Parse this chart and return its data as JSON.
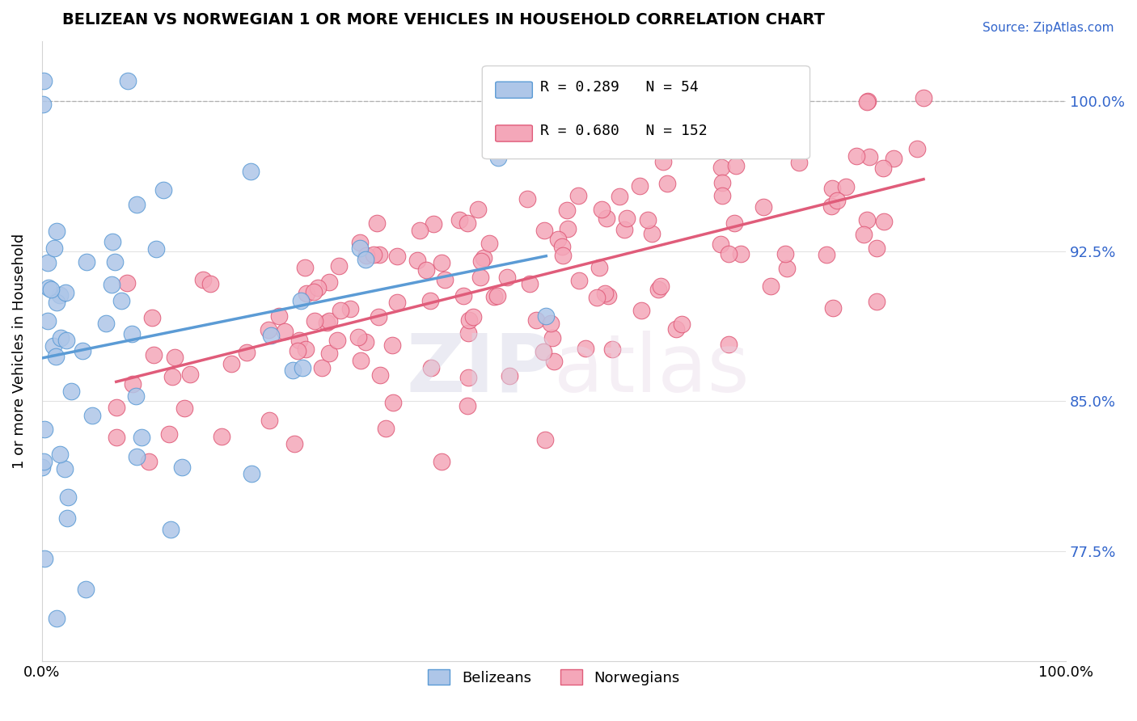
{
  "title": "BELIZEAN VS NORWEGIAN 1 OR MORE VEHICLES IN HOUSEHOLD CORRELATION CHART",
  "source": "Source: ZipAtlas.com",
  "ylabel": "1 or more Vehicles in Household",
  "ytick_labels": [
    "77.5%",
    "85.0%",
    "92.5%",
    "100.0%"
  ],
  "ytick_values": [
    0.775,
    0.85,
    0.925,
    1.0
  ],
  "belizean_color": "#aec6e8",
  "norwegian_color": "#f4a7b9",
  "belizean_line_color": "#5b9bd5",
  "norwegian_line_color": "#e05c7a",
  "background_color": "#ffffff",
  "xlim": [
    0.0,
    1.0
  ],
  "ylim": [
    0.72,
    1.03
  ],
  "belizean_seed": 42,
  "norwegian_seed": 7,
  "R_belizean": 0.289,
  "N_belizean": 54,
  "R_norwegian": 0.68,
  "N_norwegian": 152
}
